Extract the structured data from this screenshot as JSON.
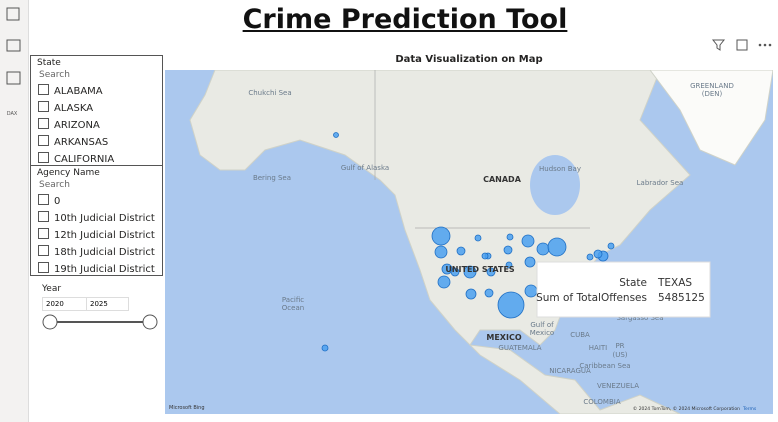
{
  "header": {
    "title": "Crime Prediction Tool"
  },
  "slicers": {
    "state": {
      "title": "State",
      "search": "Search",
      "items": [
        "ALABAMA",
        "ALASKA",
        "ARIZONA",
        "ARKANSAS",
        "CALIFORNIA"
      ]
    },
    "agency": {
      "title": "Agency Name",
      "search": "Search",
      "items": [
        "0",
        "10th Judicial District",
        "12th Judicial District",
        "18th Judicial District",
        "19th Judicial District"
      ]
    },
    "year": {
      "title": "Year",
      "from": "2020",
      "to": "2025"
    }
  },
  "map": {
    "title": "Data Visualization on Map",
    "labels": [
      "Chukchi Sea",
      "Bering Sea",
      "Gulf of Alaska",
      "CANADA",
      "Hudson Bay",
      "Labrador Sea",
      "GREENLAND",
      "(DEN)",
      "UNITED STATES",
      "Pacific",
      "Ocean",
      "Gulf of",
      "Mexico",
      "MEXICO",
      "CUBA",
      "HAITI",
      "PR",
      "(US)",
      "Sargasso Sea",
      "Caribbean Sea",
      "NICARAGUA",
      "GUATEMALA",
      "VENEZUELA",
      "COLOMBIA"
    ],
    "logo": "Microsoft Bing",
    "copyright": "© 2024 TomTom, © 2024 Microsoft Corporation",
    "terms": "Terms",
    "tooltip": {
      "state_label": "State",
      "state_value": "TEXAS",
      "measure_label": "Sum of TotalOffenses",
      "measure_value": "5485125"
    }
  },
  "nav": {
    "dax": "DAX"
  }
}
